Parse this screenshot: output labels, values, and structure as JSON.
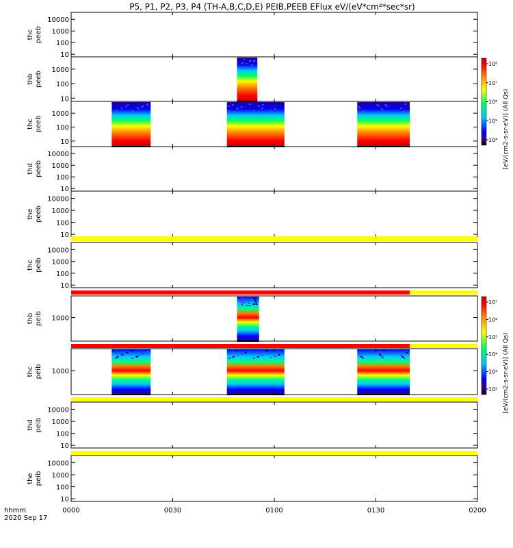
{
  "title": "P5, P1, P2, P3, P4 (TH-A,B,C,D,E) PEIB,PEEB EFlux eV/(eV*cm²*sec*sr)",
  "x_axis": {
    "label_line1": "hhmm",
    "label_line2": "2020 Sep 17",
    "ticks": [
      "0000",
      "0030",
      "0100",
      "0130",
      "0200"
    ],
    "range_minutes": [
      0,
      120
    ]
  },
  "colorbars": [
    {
      "unit_label": "[eV/(cm2-s-sr-eV)] (All Qs)",
      "tick_labels": [
        "10⁴",
        "10⁵",
        "10⁶",
        "10⁷",
        "10⁸"
      ]
    },
    {
      "unit_label": "[eV/(cm2-s-sr-eV)] (All Qs)",
      "tick_labels": [
        "10²",
        "10³",
        "10⁴",
        "10⁵",
        "10⁶",
        "10⁷"
      ]
    }
  ],
  "chart_data": {
    "type": "heatmap",
    "x_unit": "minutes since 2020-09-17 00:00 UT",
    "panels": [
      {
        "label1": "thc",
        "label2": "peeb",
        "y_ticks": [
          "10",
          "100",
          "1000",
          "10000"
        ],
        "y_range": [
          6,
          40000
        ],
        "log": true,
        "data_intervals": [],
        "colorbar": null,
        "flag_bars": []
      },
      {
        "label1": "thb",
        "label2": "peeb",
        "y_ticks": [
          "10",
          "100",
          "1000"
        ],
        "y_range": [
          6,
          7000
        ],
        "log": true,
        "data_intervals": [
          [
            49,
            55
          ]
        ],
        "colorbar": 0,
        "flag_bars": []
      },
      {
        "label1": "thc",
        "label2": "peeb",
        "y_ticks": [
          "10",
          "100",
          "1000"
        ],
        "y_range": [
          4,
          7000
        ],
        "log": true,
        "data_intervals": [
          [
            12,
            23.5
          ],
          [
            46,
            63
          ],
          [
            84.5,
            100
          ]
        ],
        "colorbar": 0,
        "flag_bars": []
      },
      {
        "label1": "thd",
        "label2": "peeb",
        "y_ticks": [
          "10",
          "100",
          "1000",
          "10000"
        ],
        "y_range": [
          6,
          40000
        ],
        "log": true,
        "data_intervals": [],
        "colorbar": null,
        "flag_bars": []
      },
      {
        "label1": "the",
        "label2": "peeb",
        "y_ticks": [
          "10",
          "100",
          "1000",
          "10000"
        ],
        "y_range": [
          6,
          40000
        ],
        "log": true,
        "data_intervals": [],
        "colorbar": null,
        "flag_bars": [
          {
            "color": "#ffff00",
            "start": 0,
            "end": 120
          }
        ]
      },
      {
        "label1": "thc",
        "label2": "peib",
        "y_ticks": [
          "10",
          "100",
          "1000",
          "10000"
        ],
        "y_range": [
          6,
          40000
        ],
        "log": true,
        "data_intervals": [],
        "colorbar": null,
        "flag_bars": [
          {
            "color": "#ff0000",
            "start": 0,
            "end": 100
          },
          {
            "color": "#ffff00",
            "start": 100,
            "end": 120
          }
        ]
      },
      {
        "label1": "thb",
        "label2": "peib",
        "y_ticks": [
          "1000"
        ],
        "y_range": [
          120,
          7000
        ],
        "log": true,
        "data_intervals": [
          [
            49,
            55.5
          ]
        ],
        "colorbar": 1,
        "flag_bars": [
          {
            "color": "#ff0000",
            "start": 0,
            "end": 100
          },
          {
            "color": "#ffff00",
            "start": 100,
            "end": 120
          }
        ]
      },
      {
        "label1": "thc",
        "label2": "peib",
        "y_ticks": [
          "1000"
        ],
        "y_range": [
          120,
          7000
        ],
        "log": true,
        "data_intervals": [
          [
            12,
            23.5
          ],
          [
            46,
            63
          ],
          [
            84.5,
            100
          ]
        ],
        "colorbar": 1,
        "flag_bars": [
          {
            "color": "#ffff00",
            "start": 0,
            "end": 120
          }
        ]
      },
      {
        "label1": "thd",
        "label2": "peib",
        "y_ticks": [
          "10",
          "100",
          "1000",
          "10000"
        ],
        "y_range": [
          6,
          40000
        ],
        "log": true,
        "data_intervals": [],
        "colorbar": null,
        "flag_bars": [
          {
            "color": "#ffff00",
            "start": 0,
            "end": 120
          }
        ]
      },
      {
        "label1": "the",
        "label2": "peib",
        "y_ticks": [
          "10",
          "100",
          "1000",
          "10000"
        ],
        "y_range": [
          6,
          40000
        ],
        "log": true,
        "data_intervals": [],
        "colorbar": null,
        "flag_bars": []
      }
    ]
  }
}
